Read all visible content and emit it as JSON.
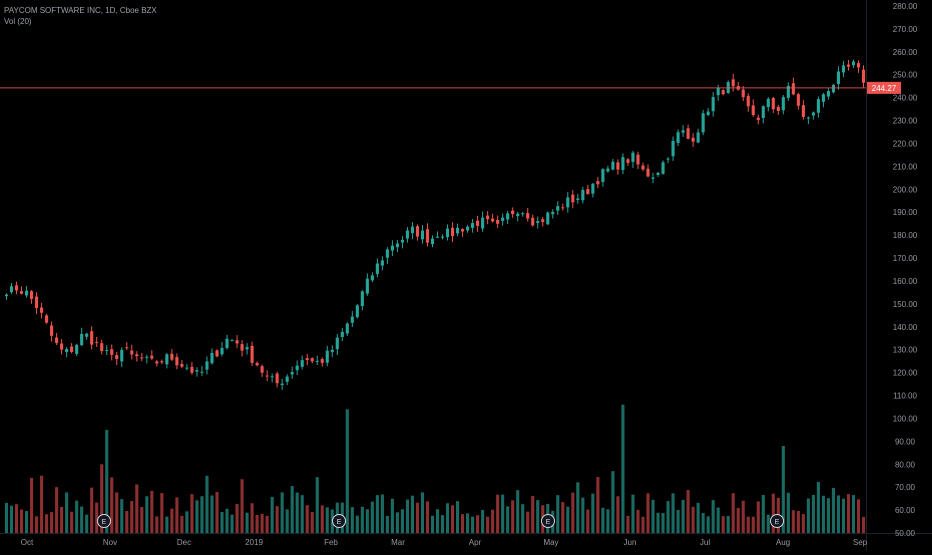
{
  "header": {
    "symbol_line": "PAYCOM SOFTWARE INC, 1D, Cboe BZX",
    "volume_line": "Vol (20)"
  },
  "colors": {
    "up": "#26a69a",
    "down": "#ef5350",
    "background": "#000000",
    "axis_text": "#9598a1",
    "price_line": "#ef5350",
    "price_badge": "#ef5350"
  },
  "chart_data": {
    "type": "candlestick",
    "price_axis": {
      "min": 50,
      "max": 280,
      "ticks": [
        "280.00",
        "270.00",
        "260.00",
        "250.00",
        "240.00",
        "230.00",
        "220.00",
        "210.00",
        "200.00",
        "190.00",
        "180.00",
        "170.00",
        "160.00",
        "150.00",
        "140.00",
        "130.00",
        "120.00",
        "110.00",
        "100.00",
        "90.00",
        "80.00",
        "70.00",
        "60.00",
        "50.00"
      ]
    },
    "time_axis": {
      "labels": [
        "Oct",
        "Nov",
        "Dec",
        "2019",
        "Feb",
        "Mar",
        "Apr",
        "May",
        "Jun",
        "Jul",
        "Aug",
        "Sep"
      ]
    },
    "last_price": "244.27",
    "earnings_markers": [
      "E",
      "E",
      "E",
      "E"
    ],
    "series_close_path": [
      154,
      157,
      155,
      150,
      142,
      133,
      128,
      131,
      137,
      134,
      129,
      126,
      130,
      127,
      126,
      124,
      125,
      127,
      124,
      122,
      118,
      125,
      130,
      135,
      133,
      129,
      124,
      118,
      115,
      118,
      123,
      127,
      124,
      126,
      131,
      138,
      145,
      155,
      163,
      170,
      176,
      178,
      182,
      181,
      178,
      182,
      180,
      183,
      184,
      186,
      185,
      183,
      188,
      192,
      190,
      185,
      188,
      191,
      194,
      196,
      198,
      203,
      207,
      210,
      212,
      214,
      208,
      206,
      210,
      218,
      226,
      221,
      228,
      237,
      243,
      245,
      241,
      235,
      231,
      238,
      234,
      244,
      240,
      228,
      236,
      243,
      247,
      252,
      254,
      248
    ]
  }
}
